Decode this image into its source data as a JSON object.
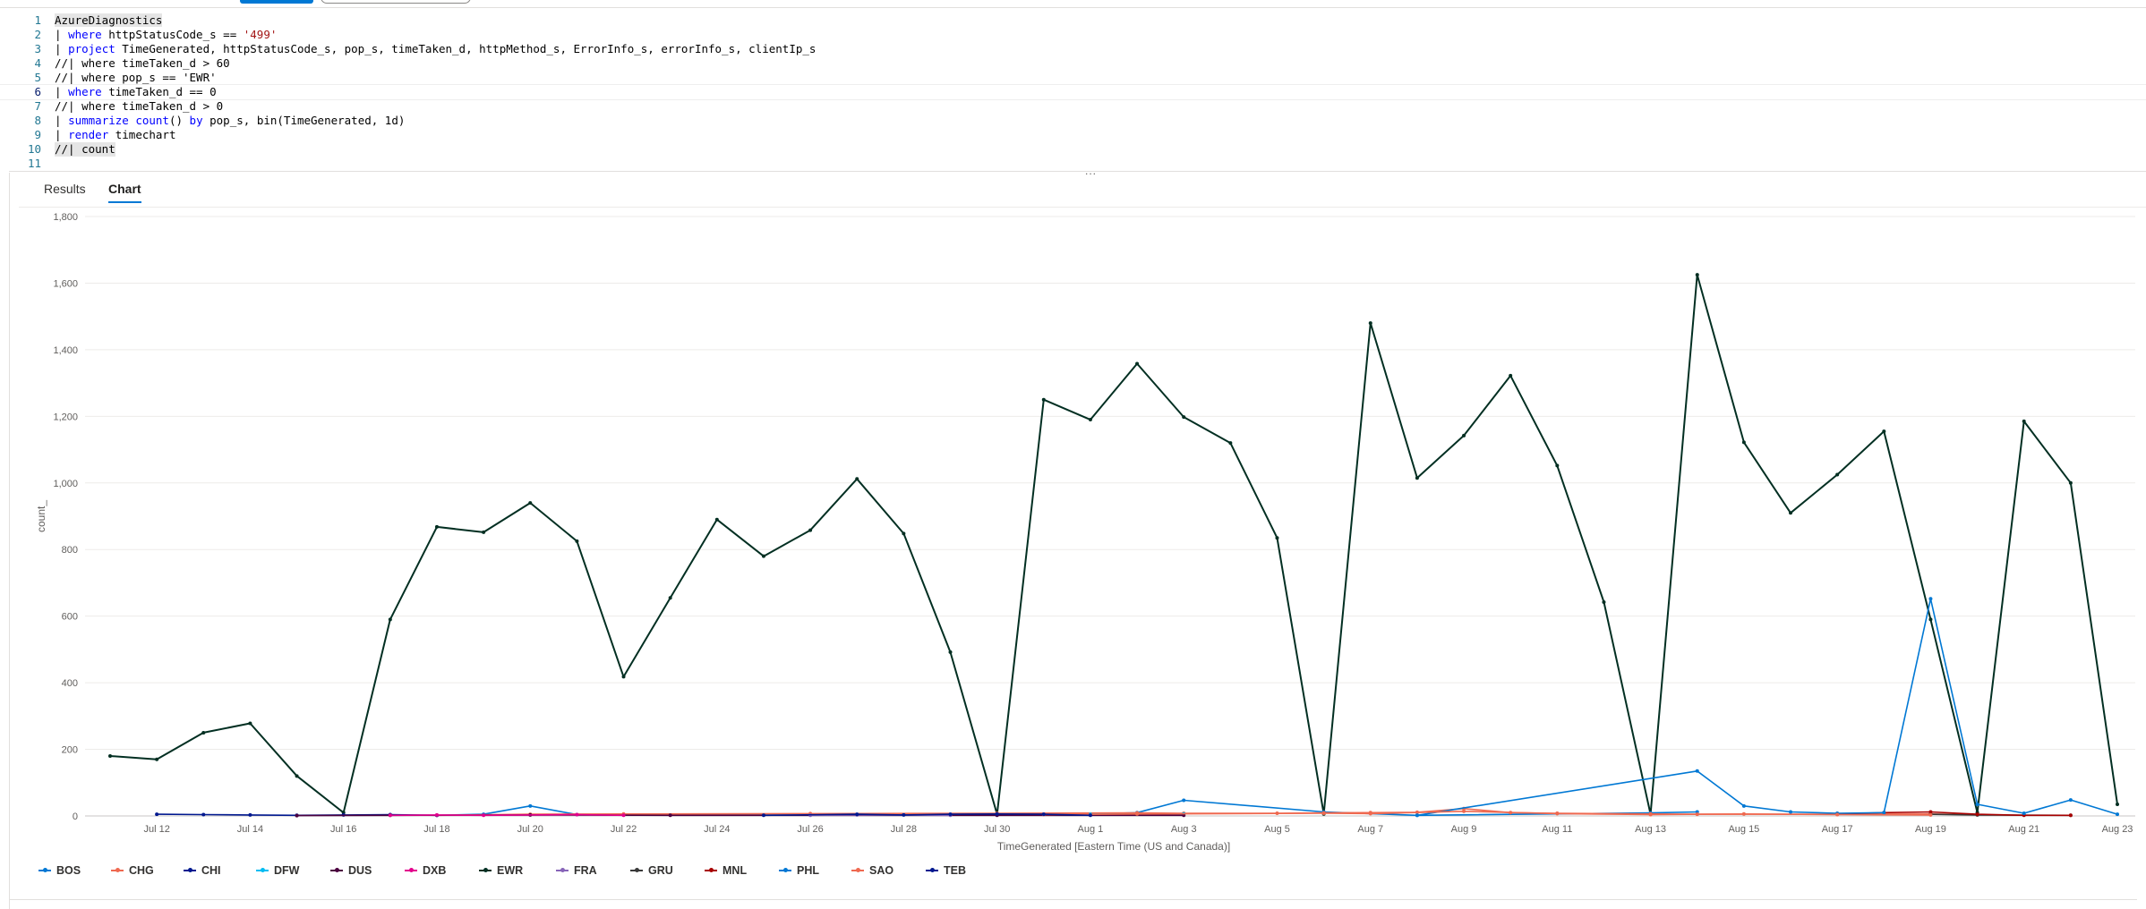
{
  "editor": {
    "lines": [
      {
        "n": "1"
      },
      {
        "n": "2"
      },
      {
        "n": "3"
      },
      {
        "n": "4"
      },
      {
        "n": "5"
      },
      {
        "n": "6"
      },
      {
        "n": "7"
      },
      {
        "n": "8"
      },
      {
        "n": "9"
      },
      {
        "n": "10"
      },
      {
        "n": "11"
      }
    ],
    "query": {
      "l1": "AzureDiagnostics",
      "l2_a": "| ",
      "l2_kw": "where",
      "l2_b": " httpStatusCode_s == ",
      "l2_str": "'499'",
      "l3_a": "| ",
      "l3_kw": "project",
      "l3_b": " TimeGenerated, httpStatusCode_s, pop_s, timeTaken_d, httpMethod_s, ErrorInfo_s, errorInfo_s, clientIp_s",
      "l4": "//| where timeTaken_d > 60",
      "l5": "//| where pop_s == 'EWR'",
      "l6_a": "| ",
      "l6_kw": "where",
      "l6_b": " timeTaken_d == 0",
      "l7": "//| where timeTaken_d > 0",
      "l8_a": "| ",
      "l8_kw": "summarize",
      "l8_b": " ",
      "l8_fn": "count",
      "l8_c": "() ",
      "l8_kw2": "by",
      "l8_d": " pop_s, bin(TimeGenerated, 1d)",
      "l9_a": "| ",
      "l9_kw": "render",
      "l9_b": " timechart",
      "l10": "//| count"
    }
  },
  "splitter_label": "...",
  "tabs": [
    {
      "label": "Results",
      "active": false
    },
    {
      "label": "Chart",
      "active": true
    }
  ],
  "chart_data": {
    "type": "line",
    "xlabel": "TimeGenerated [Eastern Time (US and Canada)]",
    "ylabel": "count_",
    "ylim": [
      0,
      1800
    ],
    "yticks": [
      0,
      200,
      400,
      600,
      800,
      1000,
      1200,
      1400,
      1600,
      1800
    ],
    "x_start_label": "Jul 11",
    "x_range_days": [
      0,
      43
    ],
    "xticks": [
      {
        "day": 1,
        "label": "Jul 12"
      },
      {
        "day": 3,
        "label": "Jul 14"
      },
      {
        "day": 5,
        "label": "Jul 16"
      },
      {
        "day": 7,
        "label": "Jul 18"
      },
      {
        "day": 9,
        "label": "Jul 20"
      },
      {
        "day": 11,
        "label": "Jul 22"
      },
      {
        "day": 13,
        "label": "Jul 24"
      },
      {
        "day": 15,
        "label": "Jul 26"
      },
      {
        "day": 17,
        "label": "Jul 28"
      },
      {
        "day": 19,
        "label": "Jul 30"
      },
      {
        "day": 21,
        "label": "Aug 1"
      },
      {
        "day": 23,
        "label": "Aug 3"
      },
      {
        "day": 25,
        "label": "Aug 5"
      },
      {
        "day": 27,
        "label": "Aug 7"
      },
      {
        "day": 29,
        "label": "Aug 9"
      },
      {
        "day": 31,
        "label": "Aug 11"
      },
      {
        "day": 33,
        "label": "Aug 13"
      },
      {
        "day": 35,
        "label": "Aug 15"
      },
      {
        "day": 37,
        "label": "Aug 17"
      },
      {
        "day": 39,
        "label": "Aug 19"
      },
      {
        "day": 41,
        "label": "Aug 21"
      },
      {
        "day": 43,
        "label": "Aug 23"
      }
    ],
    "grid": true,
    "legend_position": "bottom-left",
    "series": [
      {
        "name": "BOS",
        "color": "#0078d4",
        "points": [
          [
            7,
            2
          ],
          [
            8,
            5
          ],
          [
            9,
            30
          ],
          [
            10,
            4
          ],
          [
            11,
            3
          ],
          [
            15,
            3
          ],
          [
            19,
            3
          ],
          [
            21,
            5
          ],
          [
            22,
            10
          ],
          [
            23,
            47
          ],
          [
            26,
            12
          ],
          [
            28,
            2
          ],
          [
            33,
            9
          ],
          [
            34,
            12
          ]
        ]
      },
      {
        "name": "CHG",
        "color": "#ef6950",
        "points": [
          [
            7,
            2
          ],
          [
            9,
            5
          ],
          [
            11,
            6
          ],
          [
            15,
            7
          ],
          [
            19,
            8
          ],
          [
            22,
            9
          ],
          [
            23,
            8
          ],
          [
            25,
            8
          ],
          [
            26,
            9
          ],
          [
            27,
            10
          ],
          [
            28,
            11
          ],
          [
            29,
            22
          ],
          [
            30,
            10
          ],
          [
            31,
            8
          ],
          [
            33,
            6
          ],
          [
            34,
            5
          ],
          [
            37,
            5
          ],
          [
            39,
            6
          ],
          [
            40,
            4
          ]
        ]
      },
      {
        "name": "CHI",
        "color": "#00188f",
        "points": [
          [
            1,
            5
          ],
          [
            2,
            4
          ],
          [
            3,
            3
          ],
          [
            4,
            2
          ],
          [
            5,
            3
          ],
          [
            6,
            4
          ],
          [
            7,
            2
          ]
        ]
      },
      {
        "name": "DFW",
        "color": "#00bcf2",
        "points": [
          [
            21,
            5
          ],
          [
            22,
            5
          ],
          [
            23,
            6
          ]
        ]
      },
      {
        "name": "DUS",
        "color": "#4b003f",
        "points": [
          [
            4,
            1
          ],
          [
            6,
            2
          ],
          [
            9,
            3
          ],
          [
            12,
            2
          ],
          [
            19,
            2
          ],
          [
            23,
            2
          ]
        ]
      },
      {
        "name": "DXB",
        "color": "#e3008c",
        "points": [
          [
            6,
            2
          ],
          [
            7,
            3
          ],
          [
            8,
            2
          ],
          [
            10,
            4
          ],
          [
            11,
            2
          ]
        ]
      },
      {
        "name": "EWR",
        "color": "#022f22",
        "points": [
          [
            0,
            180
          ],
          [
            1,
            170
          ],
          [
            2,
            250
          ],
          [
            3,
            278
          ],
          [
            4,
            120
          ],
          [
            5,
            10
          ],
          [
            6,
            590
          ],
          [
            7,
            868
          ],
          [
            8,
            852
          ],
          [
            9,
            940
          ],
          [
            10,
            825
          ],
          [
            11,
            418
          ],
          [
            12,
            655
          ],
          [
            13,
            890
          ],
          [
            14,
            780
          ],
          [
            15,
            858
          ],
          [
            16,
            1012
          ],
          [
            17,
            848
          ],
          [
            18,
            492
          ],
          [
            19,
            5
          ],
          [
            20,
            1250
          ],
          [
            21,
            1190
          ],
          [
            22,
            1358
          ],
          [
            23,
            1198
          ],
          [
            24,
            1120
          ],
          [
            25,
            835
          ],
          [
            26,
            6
          ],
          [
            27,
            1480
          ],
          [
            28,
            1015
          ],
          [
            29,
            1142
          ],
          [
            30,
            1322
          ],
          [
            31,
            1052
          ],
          [
            32,
            642
          ],
          [
            33,
            5
          ],
          [
            34,
            1625
          ],
          [
            35,
            1122
          ],
          [
            36,
            910
          ],
          [
            37,
            1025
          ],
          [
            38,
            1155
          ],
          [
            39,
            590
          ],
          [
            40,
            10
          ],
          [
            41,
            1185
          ],
          [
            42,
            1000
          ],
          [
            43,
            35
          ]
        ]
      },
      {
        "name": "FRA",
        "color": "#8764b8",
        "points": [
          [
            15,
            2
          ],
          [
            16,
            3
          ],
          [
            18,
            2
          ]
        ]
      },
      {
        "name": "GRU",
        "color": "#393939",
        "points": [
          [
            39,
            5
          ],
          [
            40,
            3
          ],
          [
            42,
            2
          ]
        ]
      },
      {
        "name": "MNL",
        "color": "#a80000",
        "points": [
          [
            37,
            6
          ],
          [
            38,
            10
          ],
          [
            39,
            12
          ],
          [
            40,
            5
          ],
          [
            41,
            2
          ],
          [
            42,
            2
          ]
        ]
      },
      {
        "name": "PHL",
        "color": "#0078d4",
        "points": [
          [
            28,
            2
          ],
          [
            34,
            135
          ],
          [
            35,
            30
          ],
          [
            36,
            12
          ],
          [
            37,
            8
          ],
          [
            38,
            10
          ],
          [
            39,
            652
          ],
          [
            40,
            35
          ],
          [
            41,
            8
          ],
          [
            42,
            48
          ],
          [
            43,
            5
          ]
        ]
      },
      {
        "name": "SAO",
        "color": "#ef6950",
        "points": [
          [
            20,
            4
          ],
          [
            22,
            6
          ],
          [
            26,
            8
          ],
          [
            27,
            7
          ],
          [
            29,
            14
          ],
          [
            31,
            7
          ],
          [
            33,
            4
          ],
          [
            35,
            6
          ],
          [
            37,
            4
          ],
          [
            39,
            3
          ]
        ]
      },
      {
        "name": "TEB",
        "color": "#00188f",
        "points": [
          [
            14,
            2
          ],
          [
            16,
            5
          ],
          [
            17,
            3
          ],
          [
            18,
            5
          ],
          [
            19,
            6
          ],
          [
            20,
            5
          ],
          [
            21,
            2
          ]
        ]
      }
    ]
  }
}
